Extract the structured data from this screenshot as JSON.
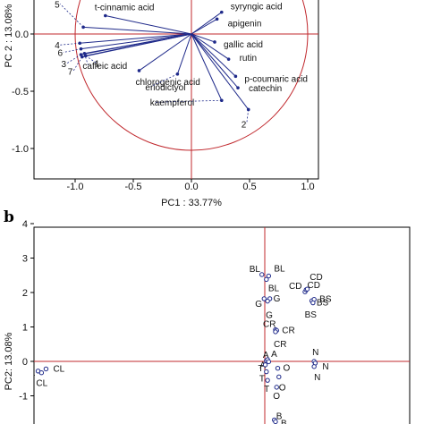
{
  "chart_data": [
    {
      "type": "scatter",
      "subtype": "loading plot",
      "xlabel": "PC1 : 33.77%",
      "ylabel": "PC 2 : 13.08%",
      "xlim": [
        -1.2,
        1.2
      ],
      "ylim": [
        -1.15,
        0.35
      ],
      "xticks": [
        "-1.0",
        "-0.5",
        "0.0",
        "0.5",
        "1.0"
      ],
      "xtick_values": [
        -1.0,
        -0.5,
        0.0,
        0.5,
        1.0
      ],
      "yticks": [
        "0.0",
        "-0.5",
        "-1.0"
      ],
      "ytick_values": [
        0.0,
        -0.5,
        -1.0
      ],
      "unit_circle": true,
      "loadings": [
        {
          "name": "t-cinnamic acid",
          "x": -0.74,
          "y": 0.16
        },
        {
          "name": "syryngic acid",
          "x": 0.26,
          "y": 0.19
        },
        {
          "name": "apigenin",
          "x": 0.22,
          "y": 0.13
        },
        {
          "name": "gallic acid",
          "x": 0.2,
          "y": -0.07
        },
        {
          "name": "rutin",
          "x": 0.32,
          "y": -0.22
        },
        {
          "name": "p-coumaric acid",
          "x": 0.38,
          "y": -0.37
        },
        {
          "name": "catechin",
          "x": 0.4,
          "y": -0.47
        },
        {
          "name": "chlorogenic acid",
          "x": -0.45,
          "y": -0.32
        },
        {
          "name": "caffeic acid",
          "x": -0.92,
          "y": -0.17
        },
        {
          "name": "eriodictyol",
          "x": -0.12,
          "y": -0.35
        },
        {
          "name": "kaempferol",
          "x": 0.26,
          "y": -0.58
        },
        {
          "name": "1",
          "x": -0.91,
          "y": -0.19
        },
        {
          "name": "2",
          "x": 0.49,
          "y": -0.66
        },
        {
          "name": "3",
          "x": -0.95,
          "y": -0.18
        },
        {
          "name": "4",
          "x": -0.96,
          "y": -0.08
        },
        {
          "name": "5",
          "x": -0.93,
          "y": 0.06
        },
        {
          "name": "6",
          "x": -0.95,
          "y": -0.13
        },
        {
          "name": "7",
          "x": -0.94,
          "y": -0.2
        }
      ],
      "panel": "a"
    },
    {
      "type": "scatter",
      "subtype": "score plot",
      "xlabel": "",
      "ylabel": "PC2: 13.08%",
      "ylim": [
        -2.0,
        4.2
      ],
      "yticks": [
        "4",
        "3",
        "2",
        "1",
        "0",
        "-1"
      ],
      "ytick_values": [
        4,
        3,
        2,
        1,
        0,
        -1
      ],
      "points": [
        {
          "label": "BL",
          "x": 0.62,
          "y": 2.52
        },
        {
          "label": "BL",
          "x": 0.68,
          "y": 2.48
        },
        {
          "label": "BL",
          "x": 0.66,
          "y": 2.38
        },
        {
          "label": "G",
          "x": 0.64,
          "y": 1.82
        },
        {
          "label": "G",
          "x": 0.69,
          "y": 1.82
        },
        {
          "label": "G",
          "x": 0.67,
          "y": 1.75
        },
        {
          "label": "CR",
          "x": 0.74,
          "y": 0.92
        },
        {
          "label": "CR",
          "x": 0.75,
          "y": 0.9
        },
        {
          "label": "CR",
          "x": 0.74,
          "y": 0.86
        },
        {
          "label": "CD",
          "x": 1.0,
          "y": 2.02
        },
        {
          "label": "CD",
          "x": 1.01,
          "y": 2.08
        },
        {
          "label": "CD",
          "x": 1.02,
          "y": 2.1
        },
        {
          "label": "BS",
          "x": 1.06,
          "y": 1.76
        },
        {
          "label": "BS",
          "x": 1.08,
          "y": 1.8
        },
        {
          "label": "BS",
          "x": 1.07,
          "y": 1.7
        },
        {
          "label": "A",
          "x": 0.66,
          "y": 0.02
        },
        {
          "label": "A",
          "x": 0.67,
          "y": 0.05
        },
        {
          "label": "A",
          "x": 0.68,
          "y": -0.01
        },
        {
          "label": "T",
          "x": 0.65,
          "y": -0.1
        },
        {
          "label": "T",
          "x": 0.66,
          "y": -0.3
        },
        {
          "label": "T",
          "x": 0.67,
          "y": -0.55
        },
        {
          "label": "O",
          "x": 0.76,
          "y": -0.2
        },
        {
          "label": "O",
          "x": 0.77,
          "y": -0.45
        },
        {
          "label": "O",
          "x": 0.75,
          "y": -0.75
        },
        {
          "label": "N",
          "x": 1.08,
          "y": 0.0
        },
        {
          "label": "N",
          "x": 1.09,
          "y": -0.05
        },
        {
          "label": "N",
          "x": 1.08,
          "y": -0.15
        },
        {
          "label": "CL",
          "x": -1.35,
          "y": -0.28
        },
        {
          "label": "CL",
          "x": -1.28,
          "y": -0.22
        },
        {
          "label": "CL",
          "x": -1.32,
          "y": -0.33
        },
        {
          "label": "B",
          "x": 0.73,
          "y": -1.7
        },
        {
          "label": "B",
          "x": 0.74,
          "y": -1.75
        }
      ],
      "panel": "b"
    }
  ]
}
